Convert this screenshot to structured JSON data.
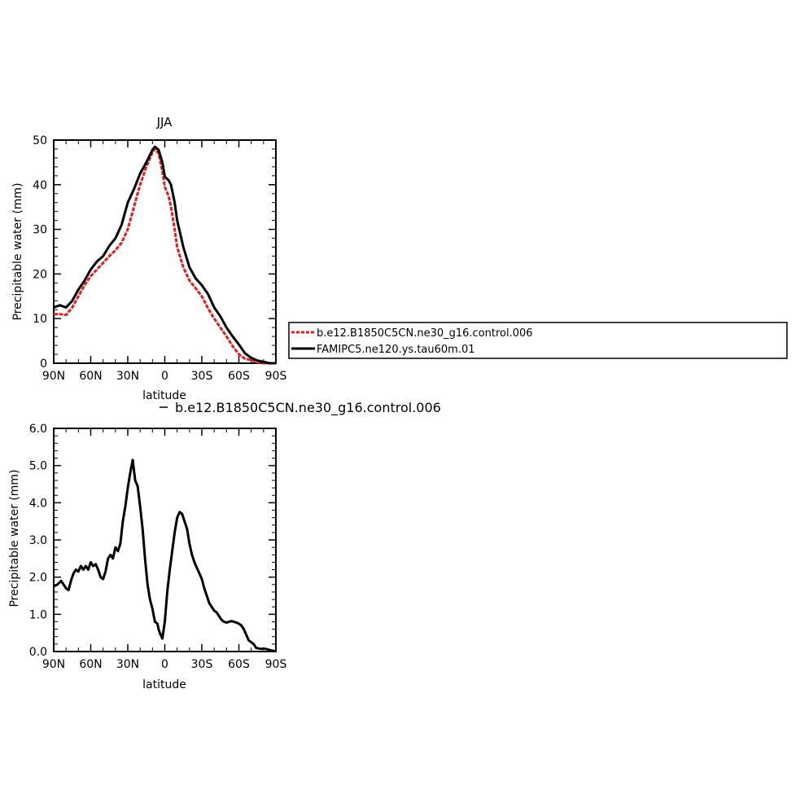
{
  "chart_data": [
    {
      "type": "line",
      "title": "JJA",
      "xlabel": "latitude",
      "ylabel": "Precipitable water (mm)",
      "xlim": [
        90,
        -90
      ],
      "ylim": [
        0,
        50
      ],
      "x_ticks": [
        90,
        60,
        30,
        0,
        -30,
        -60,
        -90
      ],
      "x_tick_labels": [
        "90N",
        "60N",
        "30N",
        "0",
        "30S",
        "60S",
        "90S"
      ],
      "y_ticks": [
        0,
        10,
        20,
        30,
        40,
        50
      ],
      "y_tick_labels": [
        "0",
        "10",
        "20",
        "30",
        "40",
        "50"
      ],
      "legend": {
        "placement": "right",
        "entries": [
          {
            "label": "b.e12.B1850C5CN.ne30_g16.control.006",
            "color": "#e02020",
            "dash": "dashed"
          },
          {
            "label": "FAMIPC5.ne120.ys.tau60m.01",
            "color": "#000000",
            "dash": "solid"
          }
        ]
      },
      "x": [
        90,
        85,
        80,
        75,
        70,
        65,
        60,
        55,
        50,
        45,
        40,
        35,
        30,
        25,
        20,
        15,
        10,
        8,
        5,
        2,
        0,
        -3,
        -5,
        -8,
        -10,
        -15,
        -20,
        -25,
        -30,
        -35,
        -40,
        -45,
        -50,
        -55,
        -60,
        -65,
        -70,
        -75,
        -80,
        -85,
        -90
      ],
      "series": [
        {
          "name": "b.e12.B1850C5CN.ne30_g16.control.006",
          "color": "#e02020",
          "values": [
            11,
            11,
            10.8,
            12.5,
            15,
            17.5,
            19.5,
            21,
            22.5,
            24,
            25.3,
            27,
            30,
            35,
            40,
            44,
            47.2,
            48,
            47,
            43,
            39.5,
            37.5,
            35,
            30,
            26,
            21.5,
            18.5,
            16.8,
            15,
            12.3,
            10,
            8,
            6,
            3.8,
            2,
            1,
            0.7,
            0.2,
            0,
            0,
            0
          ]
        },
        {
          "name": "FAMIPC5.ne120.ys.tau60m.01",
          "color": "#000000",
          "values": [
            12.5,
            13,
            12.5,
            14,
            16.5,
            18.5,
            21,
            22.8,
            24,
            26.3,
            28,
            31,
            36,
            39,
            42.5,
            45,
            47.8,
            48.5,
            47.8,
            45,
            41.8,
            41,
            40,
            36,
            32,
            26,
            21.5,
            19,
            17.5,
            15.5,
            12.5,
            10.5,
            8,
            6,
            4.2,
            2.2,
            1.2,
            0.6,
            0.3,
            0,
            0
          ]
        }
      ]
    },
    {
      "type": "line",
      "title": "",
      "subtitle": "b.e12.B1850C5CN.ne30_g16.control.006",
      "xlabel": "latitude",
      "ylabel": "Precipitable water (mm)",
      "xlim": [
        90,
        -90
      ],
      "ylim": [
        0,
        6
      ],
      "x_ticks": [
        90,
        60,
        30,
        0,
        -30,
        -60,
        -90
      ],
      "x_tick_labels": [
        "90N",
        "60N",
        "30N",
        "0",
        "30S",
        "60S",
        "90S"
      ],
      "y_ticks": [
        0,
        1,
        2,
        3,
        4,
        5,
        6
      ],
      "y_tick_labels": [
        "0.0",
        "1.0",
        "2.0",
        "3.0",
        "4.0",
        "5.0",
        "6.0"
      ],
      "x": [
        90,
        87,
        84,
        82,
        80,
        78,
        76,
        74,
        72,
        70,
        68,
        66,
        64,
        62,
        60,
        58,
        56,
        54,
        52,
        50,
        48,
        46,
        44,
        42,
        40,
        38,
        36,
        34,
        32,
        30,
        28,
        26,
        24,
        22,
        20,
        18,
        16,
        14,
        12,
        10,
        8,
        6,
        5,
        4,
        2,
        0,
        -2,
        -4,
        -6,
        -8,
        -10,
        -12,
        -14,
        -16,
        -18,
        -20,
        -22,
        -24,
        -26,
        -28,
        -30,
        -32,
        -34,
        -36,
        -38,
        -40,
        -42,
        -44,
        -46,
        -48,
        -50,
        -52,
        -54,
        -56,
        -58,
        -60,
        -62,
        -64,
        -66,
        -68,
        -70,
        -72,
        -74,
        -76,
        -78,
        -80,
        -82,
        -84,
        -86,
        -88,
        -90
      ],
      "series": [
        {
          "name": "",
          "color": "#000000",
          "values": [
            1.75,
            1.8,
            1.9,
            1.8,
            1.7,
            1.65,
            1.9,
            2.1,
            2.2,
            2.15,
            2.3,
            2.2,
            2.3,
            2.2,
            2.4,
            2.3,
            2.35,
            2.2,
            2.0,
            1.95,
            2.15,
            2.5,
            2.6,
            2.5,
            2.8,
            2.7,
            2.9,
            3.5,
            3.9,
            4.4,
            4.8,
            5.15,
            4.6,
            4.45,
            3.9,
            3.3,
            2.5,
            1.8,
            1.4,
            1.15,
            0.8,
            0.75,
            0.6,
            0.5,
            0.35,
            0.8,
            1.6,
            2.2,
            2.7,
            3.2,
            3.6,
            3.75,
            3.7,
            3.5,
            3.3,
            2.9,
            2.6,
            2.4,
            2.25,
            2.1,
            1.95,
            1.7,
            1.5,
            1.3,
            1.2,
            1.1,
            1.05,
            0.95,
            0.85,
            0.8,
            0.78,
            0.8,
            0.82,
            0.8,
            0.78,
            0.75,
            0.7,
            0.6,
            0.45,
            0.3,
            0.25,
            0.2,
            0.1,
            0.08,
            0.07,
            0.08,
            0.07,
            0.05,
            0.03,
            0.02,
            0
          ]
        }
      ]
    }
  ]
}
